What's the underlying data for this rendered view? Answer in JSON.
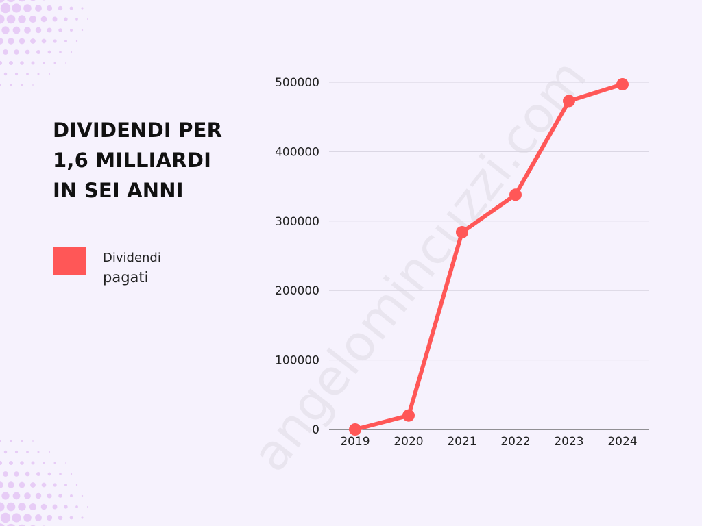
{
  "page": {
    "title_lines": [
      "DIVIDENDI PER",
      "1,6 MILLIARDI",
      "IN SEI ANNI"
    ],
    "watermark": "angelomincuzzi.com",
    "colors": {
      "background": "#f6f2fd",
      "accent": "#ff5757",
      "dots": "#e4c6f4",
      "grid": "#d7d3e0"
    }
  },
  "legend": {
    "line1": "Dividendi",
    "line2": "pagati"
  },
  "chart_data": {
    "type": "line",
    "categories": [
      "2019",
      "2020",
      "2021",
      "2022",
      "2023",
      "2024"
    ],
    "series": [
      {
        "name": "Dividendi pagati",
        "values": [
          0,
          20000,
          284000,
          338000,
          473000,
          497000
        ],
        "color": "#ff5757"
      }
    ],
    "ylim": [
      0,
      500000
    ],
    "yticks": [
      "0",
      "100000",
      "200000",
      "300000",
      "400000",
      "500000"
    ],
    "grid": true,
    "legend_position": "left"
  }
}
